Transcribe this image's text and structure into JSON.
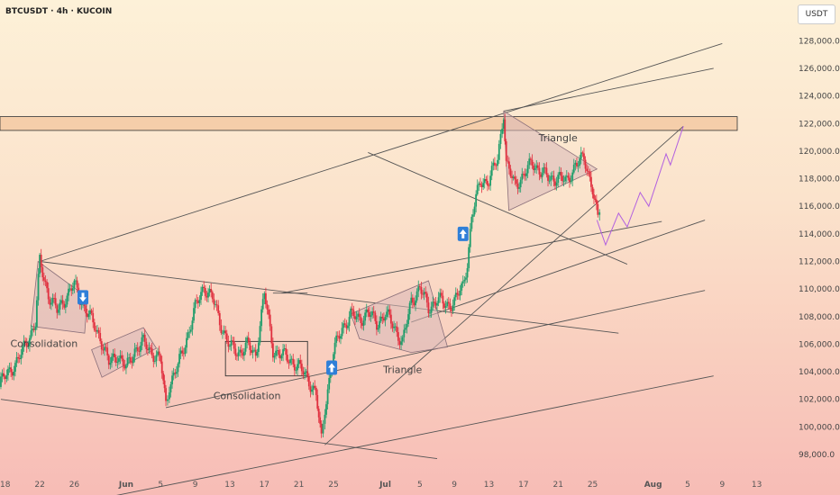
{
  "header": {
    "title": "BTCUSDT · 4h · KUCOIN"
  },
  "unit_button": {
    "label": "USDT"
  },
  "chart_data": {
    "type": "candlestick",
    "ylim": [
      96500,
      129000
    ],
    "y_ticks": [
      98000,
      100000,
      102000,
      104000,
      106000,
      108000,
      110000,
      112000,
      114000,
      116000,
      118000,
      120000,
      122000,
      124000,
      126000,
      128000
    ],
    "y_tick_labels": [
      "98,000.0",
      "100,000.0",
      "102,000.0",
      "104,000.0",
      "106,000.0",
      "108,000.0",
      "110,000.0",
      "112,000.0",
      "114,000.0",
      "116,000.0",
      "118,000.0",
      "120,000.0",
      "122,000.0",
      "124,000.0",
      "126,000.0",
      "128,000.0"
    ],
    "x_ticks": [
      {
        "label": "18",
        "day": -14
      },
      {
        "label": "22",
        "day": -10
      },
      {
        "label": "26",
        "day": -6
      },
      {
        "label": "Jun",
        "day": 0
      },
      {
        "label": "5",
        "day": 4
      },
      {
        "label": "9",
        "day": 8
      },
      {
        "label": "13",
        "day": 12
      },
      {
        "label": "17",
        "day": 16
      },
      {
        "label": "21",
        "day": 20
      },
      {
        "label": "25",
        "day": 24
      },
      {
        "label": "Jul",
        "day": 30
      },
      {
        "label": "5",
        "day": 34
      },
      {
        "label": "9",
        "day": 38
      },
      {
        "label": "13",
        "day": 42
      },
      {
        "label": "17",
        "day": 46
      },
      {
        "label": "21",
        "day": 50
      },
      {
        "label": "25",
        "day": 54
      },
      {
        "label": "Aug",
        "day": 61
      },
      {
        "label": "5",
        "day": 65
      },
      {
        "label": "9",
        "day": 69
      },
      {
        "label": "13",
        "day": 73
      }
    ],
    "bold_x_ticks": [
      "Jun",
      "Jul",
      "Aug"
    ],
    "x_range_days": [
      -14.6,
      77
    ],
    "candles_approx_close": [
      [
        -14.5,
        103200
      ],
      [
        -13.5,
        104100
      ],
      [
        -12.5,
        104800
      ],
      [
        -11.5,
        106200
      ],
      [
        -10.5,
        107500
      ],
      [
        -10,
        112000
      ],
      [
        -9,
        109600
      ],
      [
        -8,
        108400
      ],
      [
        -7,
        109400
      ],
      [
        -6,
        110300
      ],
      [
        -5,
        108900
      ],
      [
        -4,
        107700
      ],
      [
        -3,
        106500
      ],
      [
        -2,
        104600
      ],
      [
        -1,
        105300
      ],
      [
        0,
        104200
      ],
      [
        1,
        105600
      ],
      [
        2,
        106100
      ],
      [
        3,
        105400
      ],
      [
        4,
        104800
      ],
      [
        4.6,
        101600
      ],
      [
        5,
        103100
      ],
      [
        6,
        104400
      ],
      [
        7,
        106400
      ],
      [
        8,
        108600
      ],
      [
        9,
        110200
      ],
      [
        10,
        109300
      ],
      [
        11,
        107400
      ],
      [
        12,
        105800
      ],
      [
        13,
        105400
      ],
      [
        14,
        105900
      ],
      [
        15,
        105200
      ],
      [
        16,
        109700
      ],
      [
        17,
        105600
      ],
      [
        18,
        105200
      ],
      [
        19,
        104900
      ],
      [
        20,
        104300
      ],
      [
        21,
        103600
      ],
      [
        22,
        102300
      ],
      [
        22.6,
        99000
      ],
      [
        23,
        101400
      ],
      [
        24,
        105400
      ],
      [
        25,
        107200
      ],
      [
        26,
        108100
      ],
      [
        27,
        107800
      ],
      [
        28,
        108300
      ],
      [
        29,
        107500
      ],
      [
        30,
        108200
      ],
      [
        31,
        107300
      ],
      [
        32,
        106100
      ],
      [
        33,
        109100
      ],
      [
        34,
        110100
      ],
      [
        35,
        108600
      ],
      [
        36,
        109300
      ],
      [
        37,
        108800
      ],
      [
        38,
        109100
      ],
      [
        39,
        110200
      ],
      [
        39.5,
        112000
      ],
      [
        40,
        115200
      ],
      [
        41,
        117800
      ],
      [
        42,
        117900
      ],
      [
        43,
        119400
      ],
      [
        43.7,
        122900
      ],
      [
        44,
        119100
      ],
      [
        45,
        117500
      ],
      [
        46,
        118300
      ],
      [
        47,
        119100
      ],
      [
        48,
        118600
      ],
      [
        49,
        117900
      ],
      [
        50,
        118200
      ],
      [
        51,
        117700
      ],
      [
        52,
        119100
      ],
      [
        53,
        119400
      ],
      [
        54,
        117400
      ],
      [
        54.6,
        115000
      ],
      [
        55,
        116300
      ]
    ],
    "annotations": [
      {
        "text": "Consolidation",
        "day": -9.5,
        "price": 105800
      },
      {
        "text": "Consolidation",
        "day": 14,
        "price": 102000
      },
      {
        "text": "Triangle",
        "day": 32,
        "price": 103900
      },
      {
        "text": "Triangle",
        "day": 50,
        "price": 120700
      }
    ],
    "resistance_zone": [
      121500,
      122500
    ],
    "arrows": [
      {
        "direction": "down",
        "day": -5,
        "price": 109400
      },
      {
        "direction": "up",
        "day": 23.8,
        "price": 104300
      },
      {
        "direction": "up",
        "day": 39,
        "price": 114000
      }
    ],
    "projection": [
      [
        54.5,
        115000
      ],
      [
        55.5,
        113200
      ],
      [
        57,
        115500
      ],
      [
        58,
        114500
      ],
      [
        59.5,
        117000
      ],
      [
        60.5,
        116000
      ],
      [
        62.5,
        119800
      ],
      [
        63,
        119000
      ],
      [
        64.5,
        121800
      ]
    ]
  }
}
